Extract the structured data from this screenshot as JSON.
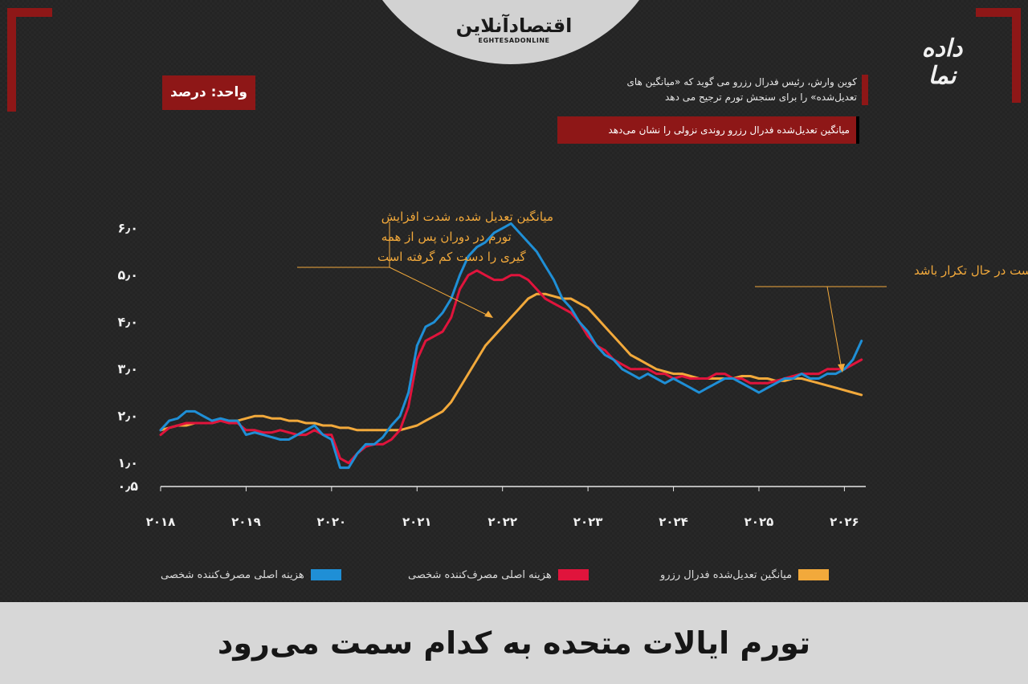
{
  "header": {
    "logo_main": "اقتصادآنلاین",
    "logo_sub": "EGHTESADONLINE",
    "brand": "داده نما"
  },
  "unit_label": "واحد: درصد",
  "note_quote": "کوین وارش، رئیس فدرال رزرو می گوید که «میانگین های تعدیل‌شده» را برای سنجش تورم ترجیح می دهد",
  "note_trend": "میانگین تعدیل‌شده فدرال رزرو روندی نزولی را نشان می‌دهد",
  "footer_title": "تورم ایالات متحده به کدام سمت می‌رود",
  "colors": {
    "accent": "#8e1717",
    "blue": "#1f8fd6",
    "red": "#e0143c",
    "orange": "#f2a93b"
  },
  "chart_data": {
    "type": "line",
    "ylabel": "واحد: درصد",
    "ylim": [
      0.5,
      6.5
    ],
    "y_ticks": [
      "۰٫۵",
      "۱٫۰",
      "۲٫۰",
      "۳٫۰",
      "۴٫۰",
      "۵٫۰",
      "۶٫۰"
    ],
    "y_tick_values": [
      0.5,
      1.0,
      2.0,
      3.0,
      4.0,
      5.0,
      6.0
    ],
    "x_ticks": [
      "۲۰۱۸",
      "۲۰۱۹",
      "۲۰۲۰",
      "۲۰۲۱",
      "۲۰۲۲",
      "۲۰۲۳",
      "۲۰۲۴",
      "۲۰۲۵",
      "۲۰۲۶"
    ],
    "x_tick_values": [
      2018,
      2019,
      2020,
      2021,
      2022,
      2023,
      2024,
      2025,
      2026
    ],
    "xlim": [
      2018,
      2026.25
    ],
    "series": [
      {
        "name": "هزینه اصلی مصرف‌کننده شخصی",
        "color": "#1f8fd6",
        "x": [
          2018.0,
          2018.1,
          2018.2,
          2018.3,
          2018.4,
          2018.5,
          2018.6,
          2018.7,
          2018.8,
          2018.9,
          2019.0,
          2019.1,
          2019.2,
          2019.3,
          2019.4,
          2019.5,
          2019.6,
          2019.7,
          2019.8,
          2019.9,
          2020.0,
          2020.1,
          2020.2,
          2020.3,
          2020.4,
          2020.5,
          2020.6,
          2020.7,
          2020.8,
          2020.9,
          2021.0,
          2021.1,
          2021.2,
          2021.3,
          2021.4,
          2021.5,
          2021.6,
          2021.7,
          2021.8,
          2021.9,
          2022.0,
          2022.1,
          2022.2,
          2022.3,
          2022.4,
          2022.5,
          2022.6,
          2022.7,
          2022.8,
          2022.9,
          2023.0,
          2023.1,
          2023.2,
          2023.3,
          2023.4,
          2023.5,
          2023.6,
          2023.7,
          2023.8,
          2023.9,
          2024.0,
          2024.1,
          2024.2,
          2024.3,
          2024.4,
          2024.5,
          2024.6,
          2024.7,
          2024.8,
          2024.9,
          2025.0,
          2025.1,
          2025.2,
          2025.3,
          2025.4,
          2025.5,
          2025.6,
          2025.7,
          2025.8,
          2025.9,
          2026.0,
          2026.1,
          2026.2
        ],
        "values": [
          1.7,
          1.9,
          1.95,
          2.1,
          2.1,
          2.0,
          1.9,
          1.95,
          1.9,
          1.9,
          1.6,
          1.65,
          1.6,
          1.55,
          1.5,
          1.5,
          1.6,
          1.7,
          1.8,
          1.6,
          1.5,
          0.9,
          0.9,
          1.2,
          1.4,
          1.4,
          1.55,
          1.8,
          2.0,
          2.5,
          3.5,
          3.9,
          4.0,
          4.2,
          4.5,
          5.0,
          5.4,
          5.6,
          5.7,
          5.9,
          6.0,
          6.1,
          5.9,
          5.7,
          5.5,
          5.2,
          4.9,
          4.5,
          4.3,
          4.0,
          3.8,
          3.5,
          3.3,
          3.2,
          3.0,
          2.9,
          2.8,
          2.9,
          2.8,
          2.7,
          2.8,
          2.7,
          2.6,
          2.5,
          2.6,
          2.7,
          2.8,
          2.8,
          2.7,
          2.6,
          2.5,
          2.6,
          2.7,
          2.8,
          2.8,
          2.9,
          2.8,
          2.8,
          2.9,
          2.9,
          3.0,
          3.2,
          3.6
        ]
      },
      {
        "name": "هزینه اصلی مصرف‌کننده شخصی",
        "color": "#e0143c",
        "x": [
          2018.0,
          2018.1,
          2018.2,
          2018.3,
          2018.4,
          2018.5,
          2018.6,
          2018.7,
          2018.8,
          2018.9,
          2019.0,
          2019.1,
          2019.2,
          2019.3,
          2019.4,
          2019.5,
          2019.6,
          2019.7,
          2019.8,
          2019.9,
          2020.0,
          2020.1,
          2020.2,
          2020.3,
          2020.4,
          2020.5,
          2020.6,
          2020.7,
          2020.8,
          2020.9,
          2021.0,
          2021.1,
          2021.2,
          2021.3,
          2021.4,
          2021.5,
          2021.6,
          2021.7,
          2021.8,
          2021.9,
          2022.0,
          2022.1,
          2022.2,
          2022.3,
          2022.4,
          2022.5,
          2022.6,
          2022.7,
          2022.8,
          2022.9,
          2023.0,
          2023.1,
          2023.2,
          2023.3,
          2023.4,
          2023.5,
          2023.6,
          2023.7,
          2023.8,
          2023.9,
          2024.0,
          2024.1,
          2024.2,
          2024.3,
          2024.4,
          2024.5,
          2024.6,
          2024.7,
          2024.8,
          2024.9,
          2025.0,
          2025.1,
          2025.2,
          2025.3,
          2025.4,
          2025.5,
          2025.6,
          2025.7,
          2025.8,
          2025.9,
          2026.0,
          2026.1,
          2026.2
        ],
        "values": [
          1.6,
          1.75,
          1.8,
          1.85,
          1.85,
          1.85,
          1.85,
          1.9,
          1.85,
          1.85,
          1.7,
          1.7,
          1.65,
          1.65,
          1.7,
          1.65,
          1.6,
          1.6,
          1.7,
          1.6,
          1.6,
          1.1,
          1.0,
          1.2,
          1.35,
          1.4,
          1.4,
          1.5,
          1.7,
          2.2,
          3.2,
          3.6,
          3.7,
          3.8,
          4.1,
          4.7,
          5.0,
          5.1,
          5.0,
          4.9,
          4.9,
          5.0,
          5.0,
          4.9,
          4.7,
          4.5,
          4.4,
          4.3,
          4.2,
          4.0,
          3.7,
          3.5,
          3.4,
          3.2,
          3.1,
          3.0,
          3.0,
          3.0,
          2.9,
          2.9,
          2.8,
          2.85,
          2.8,
          2.8,
          2.8,
          2.9,
          2.9,
          2.8,
          2.8,
          2.7,
          2.7,
          2.7,
          2.75,
          2.8,
          2.85,
          2.9,
          2.9,
          2.9,
          3.0,
          3.0,
          3.0,
          3.1,
          3.2
        ]
      },
      {
        "name": "میانگین تعدیل‌شده فدرال رزرو",
        "color": "#f2a93b",
        "x": [
          2018.0,
          2018.1,
          2018.2,
          2018.3,
          2018.4,
          2018.5,
          2018.6,
          2018.7,
          2018.8,
          2018.9,
          2019.0,
          2019.1,
          2019.2,
          2019.3,
          2019.4,
          2019.5,
          2019.6,
          2019.7,
          2019.8,
          2019.9,
          2020.0,
          2020.1,
          2020.2,
          2020.3,
          2020.4,
          2020.5,
          2020.6,
          2020.7,
          2020.8,
          2020.9,
          2021.0,
          2021.1,
          2021.2,
          2021.3,
          2021.4,
          2021.5,
          2021.6,
          2021.7,
          2021.8,
          2021.9,
          2022.0,
          2022.1,
          2022.2,
          2022.3,
          2022.4,
          2022.5,
          2022.6,
          2022.7,
          2022.8,
          2022.9,
          2023.0,
          2023.1,
          2023.2,
          2023.3,
          2023.4,
          2023.5,
          2023.6,
          2023.7,
          2023.8,
          2023.9,
          2024.0,
          2024.1,
          2024.2,
          2024.3,
          2024.4,
          2024.5,
          2024.6,
          2024.7,
          2024.8,
          2024.9,
          2025.0,
          2025.1,
          2025.2,
          2025.3,
          2025.4,
          2025.5,
          2025.6,
          2025.7,
          2025.8,
          2025.9,
          2026.0,
          2026.1,
          2026.2
        ],
        "values": [
          1.7,
          1.75,
          1.8,
          1.8,
          1.85,
          1.85,
          1.85,
          1.9,
          1.9,
          1.9,
          1.95,
          2.0,
          2.0,
          1.95,
          1.95,
          1.9,
          1.9,
          1.85,
          1.85,
          1.8,
          1.8,
          1.75,
          1.75,
          1.7,
          1.7,
          1.7,
          1.7,
          1.7,
          1.7,
          1.75,
          1.8,
          1.9,
          2.0,
          2.1,
          2.3,
          2.6,
          2.9,
          3.2,
          3.5,
          3.7,
          3.9,
          4.1,
          4.3,
          4.5,
          4.6,
          4.6,
          4.55,
          4.5,
          4.5,
          4.4,
          4.3,
          4.1,
          3.9,
          3.7,
          3.5,
          3.3,
          3.2,
          3.1,
          3.0,
          2.95,
          2.9,
          2.9,
          2.85,
          2.8,
          2.8,
          2.8,
          2.8,
          2.8,
          2.85,
          2.85,
          2.8,
          2.8,
          2.75,
          2.75,
          2.8,
          2.8,
          2.75,
          2.7,
          2.65,
          2.6,
          2.55,
          2.5,
          2.45
        ]
      }
    ],
    "annotations": [
      "میانگین تعدیل شده، شدت افزایش تورم در دوران پس از همه گیری را دست کم گرفته است",
      "تاریخ ممکن است در حال تکرار باشد"
    ],
    "grid": false,
    "legend_position": "bottom"
  }
}
